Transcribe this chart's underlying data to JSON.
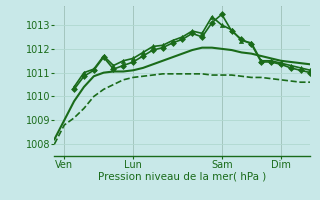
{
  "title": "",
  "xlabel": "Pression niveau de la mer( hPa )",
  "ylabel": "",
  "bg_color": "#c8e8e8",
  "grid_color": "#b0d8d0",
  "line_color": "#1a6b1a",
  "xlim": [
    0,
    78
  ],
  "ylim": [
    1007.5,
    1013.8
  ],
  "yticks": [
    1008,
    1009,
    1010,
    1011,
    1012,
    1013
  ],
  "xtick_positions": [
    3,
    24,
    51,
    69
  ],
  "xtick_labels": [
    "Ven",
    "Lun",
    "Sam",
    "Dim"
  ],
  "series": [
    {
      "x": [
        0,
        3,
        6,
        9,
        12,
        15,
        18,
        21,
        24,
        27,
        30,
        33,
        36,
        39,
        42,
        45,
        48,
        51,
        54,
        57,
        60,
        63,
        66,
        69,
        72,
        75,
        78
      ],
      "y": [
        1008.0,
        1008.8,
        1009.1,
        1009.5,
        1010.0,
        1010.3,
        1010.5,
        1010.7,
        1010.8,
        1010.85,
        1010.9,
        1010.95,
        1010.95,
        1010.95,
        1010.95,
        1010.95,
        1010.9,
        1010.9,
        1010.9,
        1010.85,
        1010.8,
        1010.8,
        1010.75,
        1010.7,
        1010.65,
        1010.6,
        1010.6
      ],
      "marker": null,
      "linewidth": 1.2,
      "linestyle": "--"
    },
    {
      "x": [
        0,
        3,
        6,
        9,
        12,
        15,
        18,
        21,
        24,
        27,
        30,
        33,
        36,
        39,
        42,
        45,
        48,
        51,
        54,
        57,
        60,
        63,
        66,
        69,
        72,
        75,
        78
      ],
      "y": [
        1008.2,
        1009.0,
        1009.8,
        1010.4,
        1010.85,
        1011.0,
        1011.05,
        1011.05,
        1011.1,
        1011.2,
        1011.35,
        1011.5,
        1011.65,
        1011.8,
        1011.95,
        1012.05,
        1012.05,
        1012.0,
        1011.95,
        1011.85,
        1011.8,
        1011.7,
        1011.6,
        1011.5,
        1011.45,
        1011.4,
        1011.35
      ],
      "marker": null,
      "linewidth": 1.5,
      "linestyle": "-"
    },
    {
      "x": [
        6,
        9,
        12,
        15,
        18,
        21,
        24,
        27,
        30,
        33,
        36,
        39,
        42,
        45,
        48,
        51,
        54,
        57,
        60,
        63,
        66,
        69,
        72,
        75,
        78
      ],
      "y": [
        1010.3,
        1010.85,
        1011.1,
        1011.65,
        1011.15,
        1011.3,
        1011.45,
        1011.7,
        1011.95,
        1012.05,
        1012.25,
        1012.4,
        1012.65,
        1012.5,
        1013.1,
        1013.45,
        1012.75,
        1012.4,
        1012.2,
        1011.45,
        1011.45,
        1011.35,
        1011.2,
        1011.1,
        1011.0
      ],
      "marker": "D",
      "linewidth": 1.2,
      "linestyle": "-"
    },
    {
      "x": [
        6,
        9,
        12,
        15,
        18,
        21,
        24,
        27,
        30,
        33,
        36,
        39,
        42,
        45,
        48,
        51,
        54,
        57,
        60,
        63,
        66,
        69,
        72,
        75,
        78
      ],
      "y": [
        1010.4,
        1011.0,
        1011.15,
        1011.7,
        1011.3,
        1011.5,
        1011.6,
        1011.85,
        1012.1,
        1012.15,
        1012.35,
        1012.5,
        1012.75,
        1012.65,
        1013.35,
        1013.0,
        1012.8,
        1012.35,
        1012.25,
        1011.5,
        1011.5,
        1011.4,
        1011.3,
        1011.2,
        1011.1
      ],
      "marker": "^",
      "linewidth": 1.2,
      "linestyle": "-"
    }
  ],
  "vlines": [
    3,
    24,
    51,
    69
  ],
  "vline_color": "#666666",
  "marker_size": 3
}
